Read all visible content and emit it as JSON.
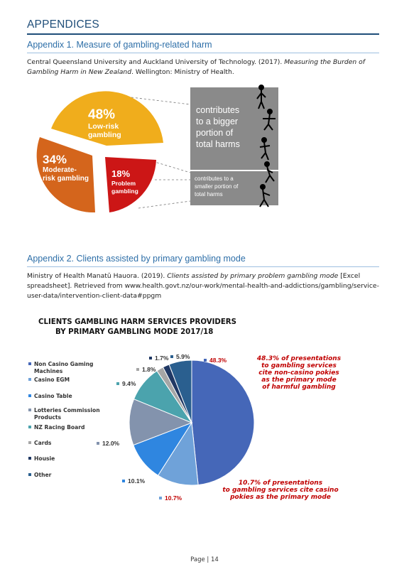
{
  "heading": "APPENDICES",
  "appendix1": {
    "title": "Appendix 1. Measure of gambling-related harm",
    "citation_plain": "Central Queensland University and Auckland University of Technology. (2017). ",
    "citation_italic": "Measuring the Burden of Gambling Harm in New Zealand",
    "citation_end": ". Wellington: Ministry of Health.",
    "figure": {
      "segments": [
        {
          "pct": "48%",
          "label_line1": "Low-risk",
          "label_line2": "gambling",
          "color": "#f0ad1c"
        },
        {
          "pct": "34%",
          "label_line1": "Moderate-",
          "label_line2": "risk gambling",
          "color": "#d4651c"
        },
        {
          "pct": "18%",
          "label_line1": "Problem",
          "label_line2": "gambling",
          "color": "#cc1616"
        }
      ],
      "box_top": {
        "line1": "contributes",
        "line2": "to a bigger",
        "line3": "portion of",
        "line4": "total harms"
      },
      "box_bottom": {
        "line1": "contributes to a",
        "line2": "smaller portion of",
        "line3": "total harms"
      },
      "box_color": "#8a8a8a"
    }
  },
  "appendix2": {
    "title": "Appendix 2. Clients assisted by primary gambling mode",
    "citation_plain": "Ministry of Health Manatū Hauora. (2019). ",
    "citation_italic": "Clients assisted by primary problem gambling mode",
    "citation_end": " [Excel spreadsheet]. Retrieved from www.health.govt.nz/our-work/mental-health-and-addictions/gambling/service-user-data/intervention-client-data#ppgm"
  },
  "chart_data": {
    "type": "pie",
    "title_line1": "CLIENTS GAMBLING HARM SERVICES PROVIDERS",
    "title_line2": "BY PRIMARY GAMBLING MODE 2017/18",
    "categories": [
      "Non Casino Gaming Machines",
      "Casino EGM",
      "Casino Table",
      "Lotteries Commission Products",
      "NZ Racing Board",
      "Cards",
      "Housie",
      "Other"
    ],
    "legend_lines": [
      [
        "Non Casino Gaming",
        "Machines"
      ],
      [
        "Casino EGM"
      ],
      [
        "Casino Table"
      ],
      [
        "Lotteries Commission",
        "Products"
      ],
      [
        "NZ Racing Board"
      ],
      [
        "Cards"
      ],
      [
        "Housie"
      ],
      [
        "Other"
      ]
    ],
    "slices": [
      {
        "name": "Non Casino Gaming Machines",
        "value": 48.3,
        "label": "48.3%",
        "color": "#4567b8",
        "label_color": "#c00000"
      },
      {
        "name": "Casino EGM",
        "value": 10.7,
        "label": "10.7%",
        "color": "#6fa2d9",
        "label_color": "#c00000"
      },
      {
        "name": "Casino Table",
        "value": 10.1,
        "label": "10.1%",
        "color": "#2f86e0",
        "label_color": "#333333"
      },
      {
        "name": "Lotteries Commission Products",
        "value": 12.0,
        "label": "12.0%",
        "color": "#8393ad",
        "label_color": "#333333"
      },
      {
        "name": "NZ Racing Board",
        "value": 9.4,
        "label": "9.4%",
        "color": "#4ba3ad",
        "label_color": "#333333"
      },
      {
        "name": "Cards",
        "value": 1.8,
        "label": "1.8%",
        "color": "#a6a6a6",
        "label_color": "#333333"
      },
      {
        "name": "Housie",
        "value": 1.7,
        "label": "1.7%",
        "color": "#203864",
        "label_color": "#333333"
      },
      {
        "name": "Other",
        "value": 5.9,
        "label": "5.9%",
        "color": "#2a5f8f",
        "label_color": "#333333"
      }
    ],
    "annotation_top": [
      "48.3% of presentations",
      "to gambling services",
      "cite non-casino pokies",
      "as the primary mode",
      "of harmful gambling"
    ],
    "annotation_bottom": [
      "10.7% of presentations",
      "to gambling services cite casino",
      "pokies as the primary mode"
    ]
  },
  "footer": "Page | 14"
}
